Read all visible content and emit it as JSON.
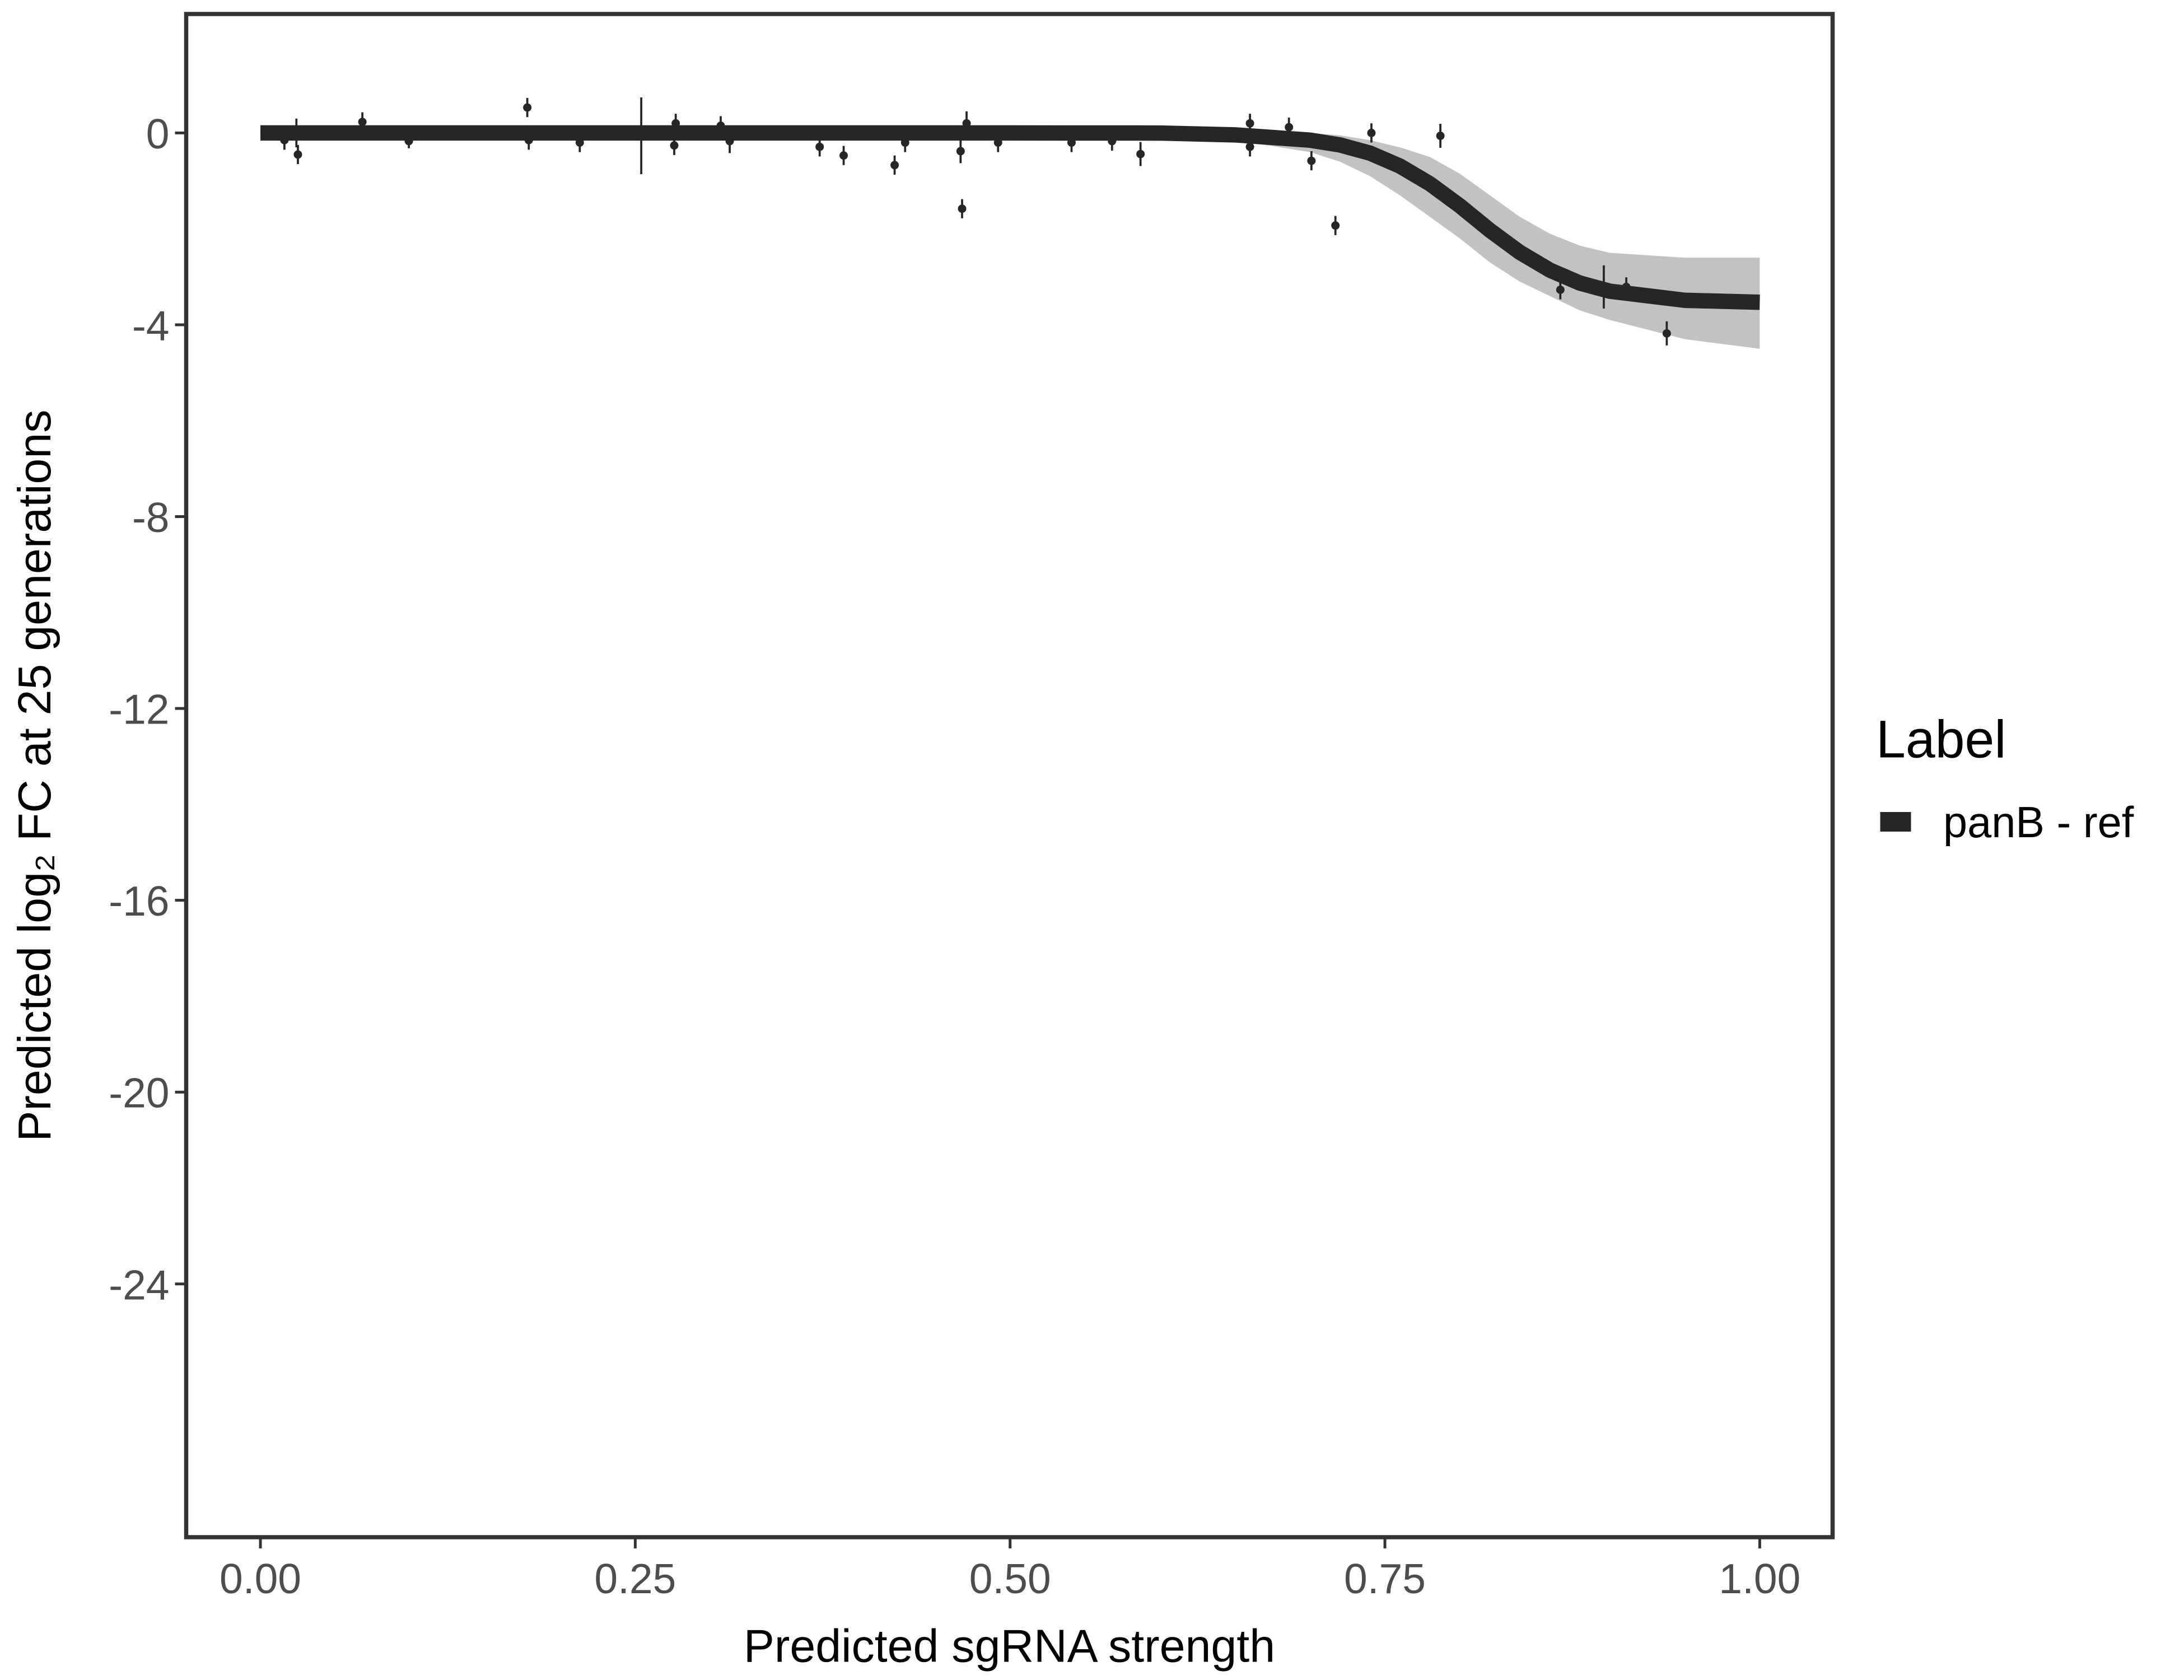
{
  "chart_data": {
    "type": "line",
    "x_label": "Predicted sgRNA strength",
    "y_label": "Predicted  log₂ FC at 25 generations",
    "xlim": [
      -0.0495,
      1.0486
    ],
    "ylim": [
      -29.28,
      2.48
    ],
    "xticks": [
      {
        "value": 0,
        "label": "0.00"
      },
      {
        "value": 0.25,
        "label": "0.25"
      },
      {
        "value": 0.5,
        "label": "0.50"
      },
      {
        "value": 0.75,
        "label": "0.75"
      },
      {
        "value": 1,
        "label": "1.00"
      }
    ],
    "yticks": [
      -24,
      -20,
      -16,
      -12,
      -8,
      -4,
      0
    ],
    "grid": false,
    "legend_title": "Label",
    "legend_position": "right",
    "series": [
      {
        "name": "panB - ref",
        "color": "#262626",
        "x": [
          0,
          0.1,
          0.2,
          0.3,
          0.4,
          0.5,
          0.6,
          0.65,
          0.7,
          0.72,
          0.74,
          0.76,
          0.78,
          0.8,
          0.82,
          0.84,
          0.86,
          0.88,
          0.9,
          0.95,
          1.0
        ],
        "values": [
          0,
          0,
          0,
          0,
          0,
          0,
          -0.002,
          -0.04,
          -0.15,
          -0.25,
          -0.42,
          -0.69,
          -1.06,
          -1.52,
          -2.03,
          -2.49,
          -2.86,
          -3.13,
          -3.3,
          -3.49,
          -3.53
        ]
      }
    ],
    "band": {
      "color": "#999999",
      "x": [
        0,
        0.1,
        0.2,
        0.3,
        0.4,
        0.5,
        0.6,
        0.65,
        0.7,
        0.72,
        0.74,
        0.76,
        0.78,
        0.8,
        0.82,
        0.84,
        0.86,
        0.88,
        0.9,
        0.95,
        1.0
      ],
      "upper": [
        0.05,
        0.05,
        0.05,
        0.05,
        0.05,
        0.05,
        0.05,
        0.05,
        0,
        -0.05,
        -0.15,
        -0.3,
        -0.5,
        -0.85,
        -1.3,
        -1.75,
        -2.1,
        -2.35,
        -2.5,
        -2.6,
        -2.6
      ],
      "lower": [
        -0.05,
        -0.05,
        -0.05,
        -0.05,
        -0.05,
        -0.05,
        -0.05,
        -0.15,
        -0.4,
        -0.6,
        -0.9,
        -1.3,
        -1.75,
        -2.2,
        -2.7,
        -3.1,
        -3.4,
        -3.7,
        -3.9,
        -4.3,
        -4.5
      ]
    },
    "points": {
      "color": "#262626",
      "x": [
        0.016,
        0.024,
        0.025,
        0.068,
        0.099,
        0.178,
        0.179,
        0.213,
        0.254,
        0.276,
        0.277,
        0.307,
        0.313,
        0.373,
        0.389,
        0.423,
        0.43,
        0.467,
        0.468,
        0.471,
        0.492,
        0.541,
        0.568,
        0.587,
        0.66,
        0.66,
        0.686,
        0.701,
        0.717,
        0.741,
        0.787,
        0.867,
        0.896,
        0.911,
        0.938
      ],
      "values": [
        -0.15,
        0,
        -0.45,
        0.23,
        -0.17,
        0.53,
        -0.15,
        -0.2,
        -0.06,
        -0.26,
        0.2,
        0.15,
        -0.17,
        -0.29,
        -0.47,
        -0.67,
        -0.2,
        -0.38,
        -1.58,
        0.2,
        -0.2,
        -0.2,
        -0.17,
        -0.44,
        -0.29,
        0.2,
        0.12,
        -0.58,
        -1.93,
        0,
        -0.06,
        -3.27,
        -3.21,
        -3.21,
        -4.18
      ],
      "errors": [
        0.2,
        0.3,
        0.2,
        0.2,
        0.15,
        0.2,
        0.2,
        0.2,
        0.8,
        0.2,
        0.2,
        0.2,
        0.25,
        0.2,
        0.2,
        0.2,
        0.2,
        0.25,
        0.2,
        0.25,
        0.2,
        0.2,
        0.2,
        0.25,
        0.2,
        0.2,
        0.2,
        0.2,
        0.2,
        0.2,
        0.25,
        0.2,
        0.45,
        0.2,
        0.25
      ]
    }
  }
}
